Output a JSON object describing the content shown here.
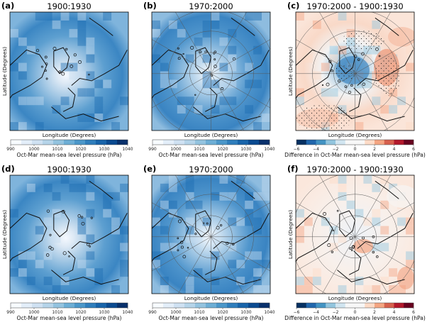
{
  "panels": [
    {
      "id": "a",
      "letter": "(a)",
      "title": "1900:1930",
      "kind": "mslp",
      "grid": false,
      "ylabel": "Latitude (Degrees)",
      "xlabel": "Longitude (Degrees)"
    },
    {
      "id": "b",
      "letter": "(b)",
      "title": "1970:2000",
      "kind": "mslp",
      "grid": true,
      "ylabel": "",
      "xlabel": "Longitude (Degrees)"
    },
    {
      "id": "c",
      "letter": "(c)",
      "title": "1970:2000 - 1900:1930",
      "kind": "diff",
      "grid": true,
      "stippled": true,
      "ylabel": "Latitude (Degrees)",
      "xlabel": "Longitude (Degrees)"
    },
    {
      "id": "d",
      "letter": "(d)",
      "title": "1900:1930",
      "kind": "mslp",
      "grid": false,
      "ylabel": "Latitude (Degrees)",
      "xlabel": "Longitude (Degrees)"
    },
    {
      "id": "e",
      "letter": "(e)",
      "title": "1970:2000",
      "kind": "mslp",
      "grid": true,
      "ylabel": "",
      "xlabel": "Longitude (Degrees)"
    },
    {
      "id": "f",
      "letter": "(f)",
      "title": "1970:2000 - 1900:1930",
      "kind": "diff",
      "grid": true,
      "stippled": false,
      "ylabel": "Latitude (Degrees)",
      "xlabel": "Longitude (Degrees)"
    }
  ],
  "colorbars": {
    "mslp": {
      "label": "Oct-Mar mean-sea level pressure (hPa)",
      "ticks": [
        "990",
        "1000",
        "1010",
        "1020",
        "1030",
        "1040"
      ],
      "colors": [
        "#f7fbff",
        "#e3eef9",
        "#cfe1f2",
        "#b5d4e9",
        "#93c3df",
        "#6daed5",
        "#4b97c9",
        "#2f7ebc",
        "#1864aa",
        "#0a4a90",
        "#08306b"
      ]
    },
    "diff": {
      "label": "Difference in Oct-Mar mean-sea level pressure (hPa)",
      "ticks": [
        "−6",
        "−4",
        "−2",
        "0",
        "2",
        "4",
        "6"
      ],
      "colors": [
        "#053061",
        "#2166ac",
        "#4393c3",
        "#92c5de",
        "#d1e5f0",
        "#f7f7f7",
        "#f7f7f7",
        "#fddbc7",
        "#f4a582",
        "#d6604d",
        "#b2182b",
        "#67001f"
      ]
    }
  }
}
